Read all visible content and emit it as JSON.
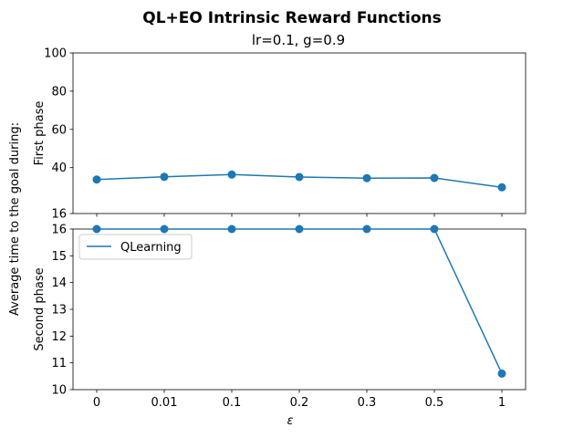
{
  "chart_data": {
    "type": "line",
    "title": "QL+EO Intrinsic Reward Functions",
    "subtitle": "lr=0.1, g=0.9",
    "shared_ylabel": "Average time to the goal during:",
    "xlabel": "ε",
    "categories": [
      "0",
      "0.01",
      "0.1",
      "0.2",
      "0.3",
      "0.5",
      "1"
    ],
    "series_color": "#1f77b4",
    "legend": {
      "label": "QLearning",
      "placement": "upper-left"
    },
    "panels": [
      {
        "ylabel": "First phase",
        "ylim": [
          16,
          100
        ],
        "yticks": [
          "16",
          "40",
          "60",
          "80",
          "100"
        ],
        "ytick_values": [
          16,
          40,
          60,
          80,
          100
        ],
        "series": [
          {
            "name": "QLearning",
            "values": [
              33.8,
              35.2,
              36.4,
              35.1,
              34.5,
              34.6,
              29.7
            ]
          }
        ]
      },
      {
        "ylabel": "Second phase",
        "ylim": [
          10,
          16
        ],
        "yticks": [
          "10",
          "11",
          "12",
          "13",
          "14",
          "15",
          "16"
        ],
        "ytick_values": [
          10,
          11,
          12,
          13,
          14,
          15,
          16
        ],
        "series": [
          {
            "name": "QLearning",
            "values": [
              16,
              16,
              16,
              16,
              16,
              16,
              10.6
            ]
          }
        ]
      }
    ]
  }
}
